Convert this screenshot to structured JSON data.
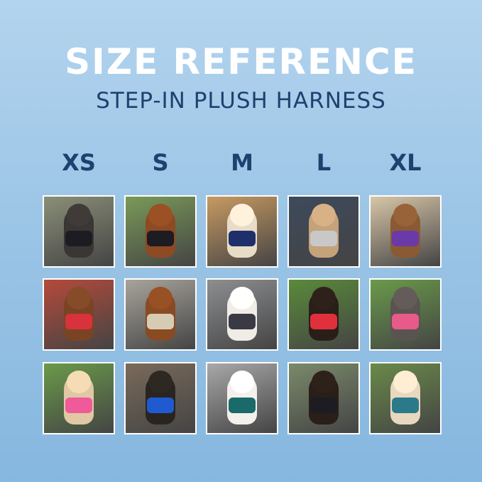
{
  "header": {
    "title": "SIZE REFERENCE",
    "subtitle": "STEP-IN PLUSH HARNESS"
  },
  "sizes": [
    "XS",
    "S",
    "M",
    "L",
    "XL"
  ],
  "photos": [
    [
      {
        "bg": "#8a8f78",
        "dog": "#3a3634",
        "harness": "#1c1c22"
      },
      {
        "bg": "#7a9a58",
        "dog": "#8e4a22",
        "harness": "#1c1c22"
      },
      {
        "bg": "#c89a62",
        "dog": "#e8dcc8",
        "harness": "#1f2f6a"
      },
      {
        "bg": "#3d4a5c",
        "dog": "#c4a27a",
        "harness": "#c8c8c8"
      },
      {
        "bg": "#d8c6a8",
        "dog": "#8a5a34",
        "harness": "#6a3aa8"
      }
    ],
    [
      {
        "bg": "#b44a3a",
        "dog": "#7a4424",
        "harness": "#d8323c"
      },
      {
        "bg": "#a8a49c",
        "dog": "#8a4a22",
        "harness": "#d6ccb4"
      },
      {
        "bg": "#8c8e90",
        "dog": "#f0ece6",
        "harness": "#3a3a44"
      },
      {
        "bg": "#5a8a3a",
        "dog": "#2a1e18",
        "harness": "#e0303c"
      },
      {
        "bg": "#6a9a4a",
        "dog": "#5a5450",
        "harness": "#e85a8a"
      }
    ],
    [
      {
        "bg": "#6a9a4a",
        "dog": "#e0c8a4",
        "harness": "#ee5a9a"
      },
      {
        "bg": "#7a6a5a",
        "dog": "#2a2420",
        "harness": "#1f5ad0"
      },
      {
        "bg": "#a8a8a8",
        "dog": "#f4f0ec",
        "harness": "#1a6a6a"
      },
      {
        "bg": "#7a8a6a",
        "dog": "#2a1e18",
        "harness": "#1c1c22"
      },
      {
        "bg": "#6a8a4a",
        "dog": "#e8d8c0",
        "harness": "#2a7a8a"
      }
    ]
  ]
}
